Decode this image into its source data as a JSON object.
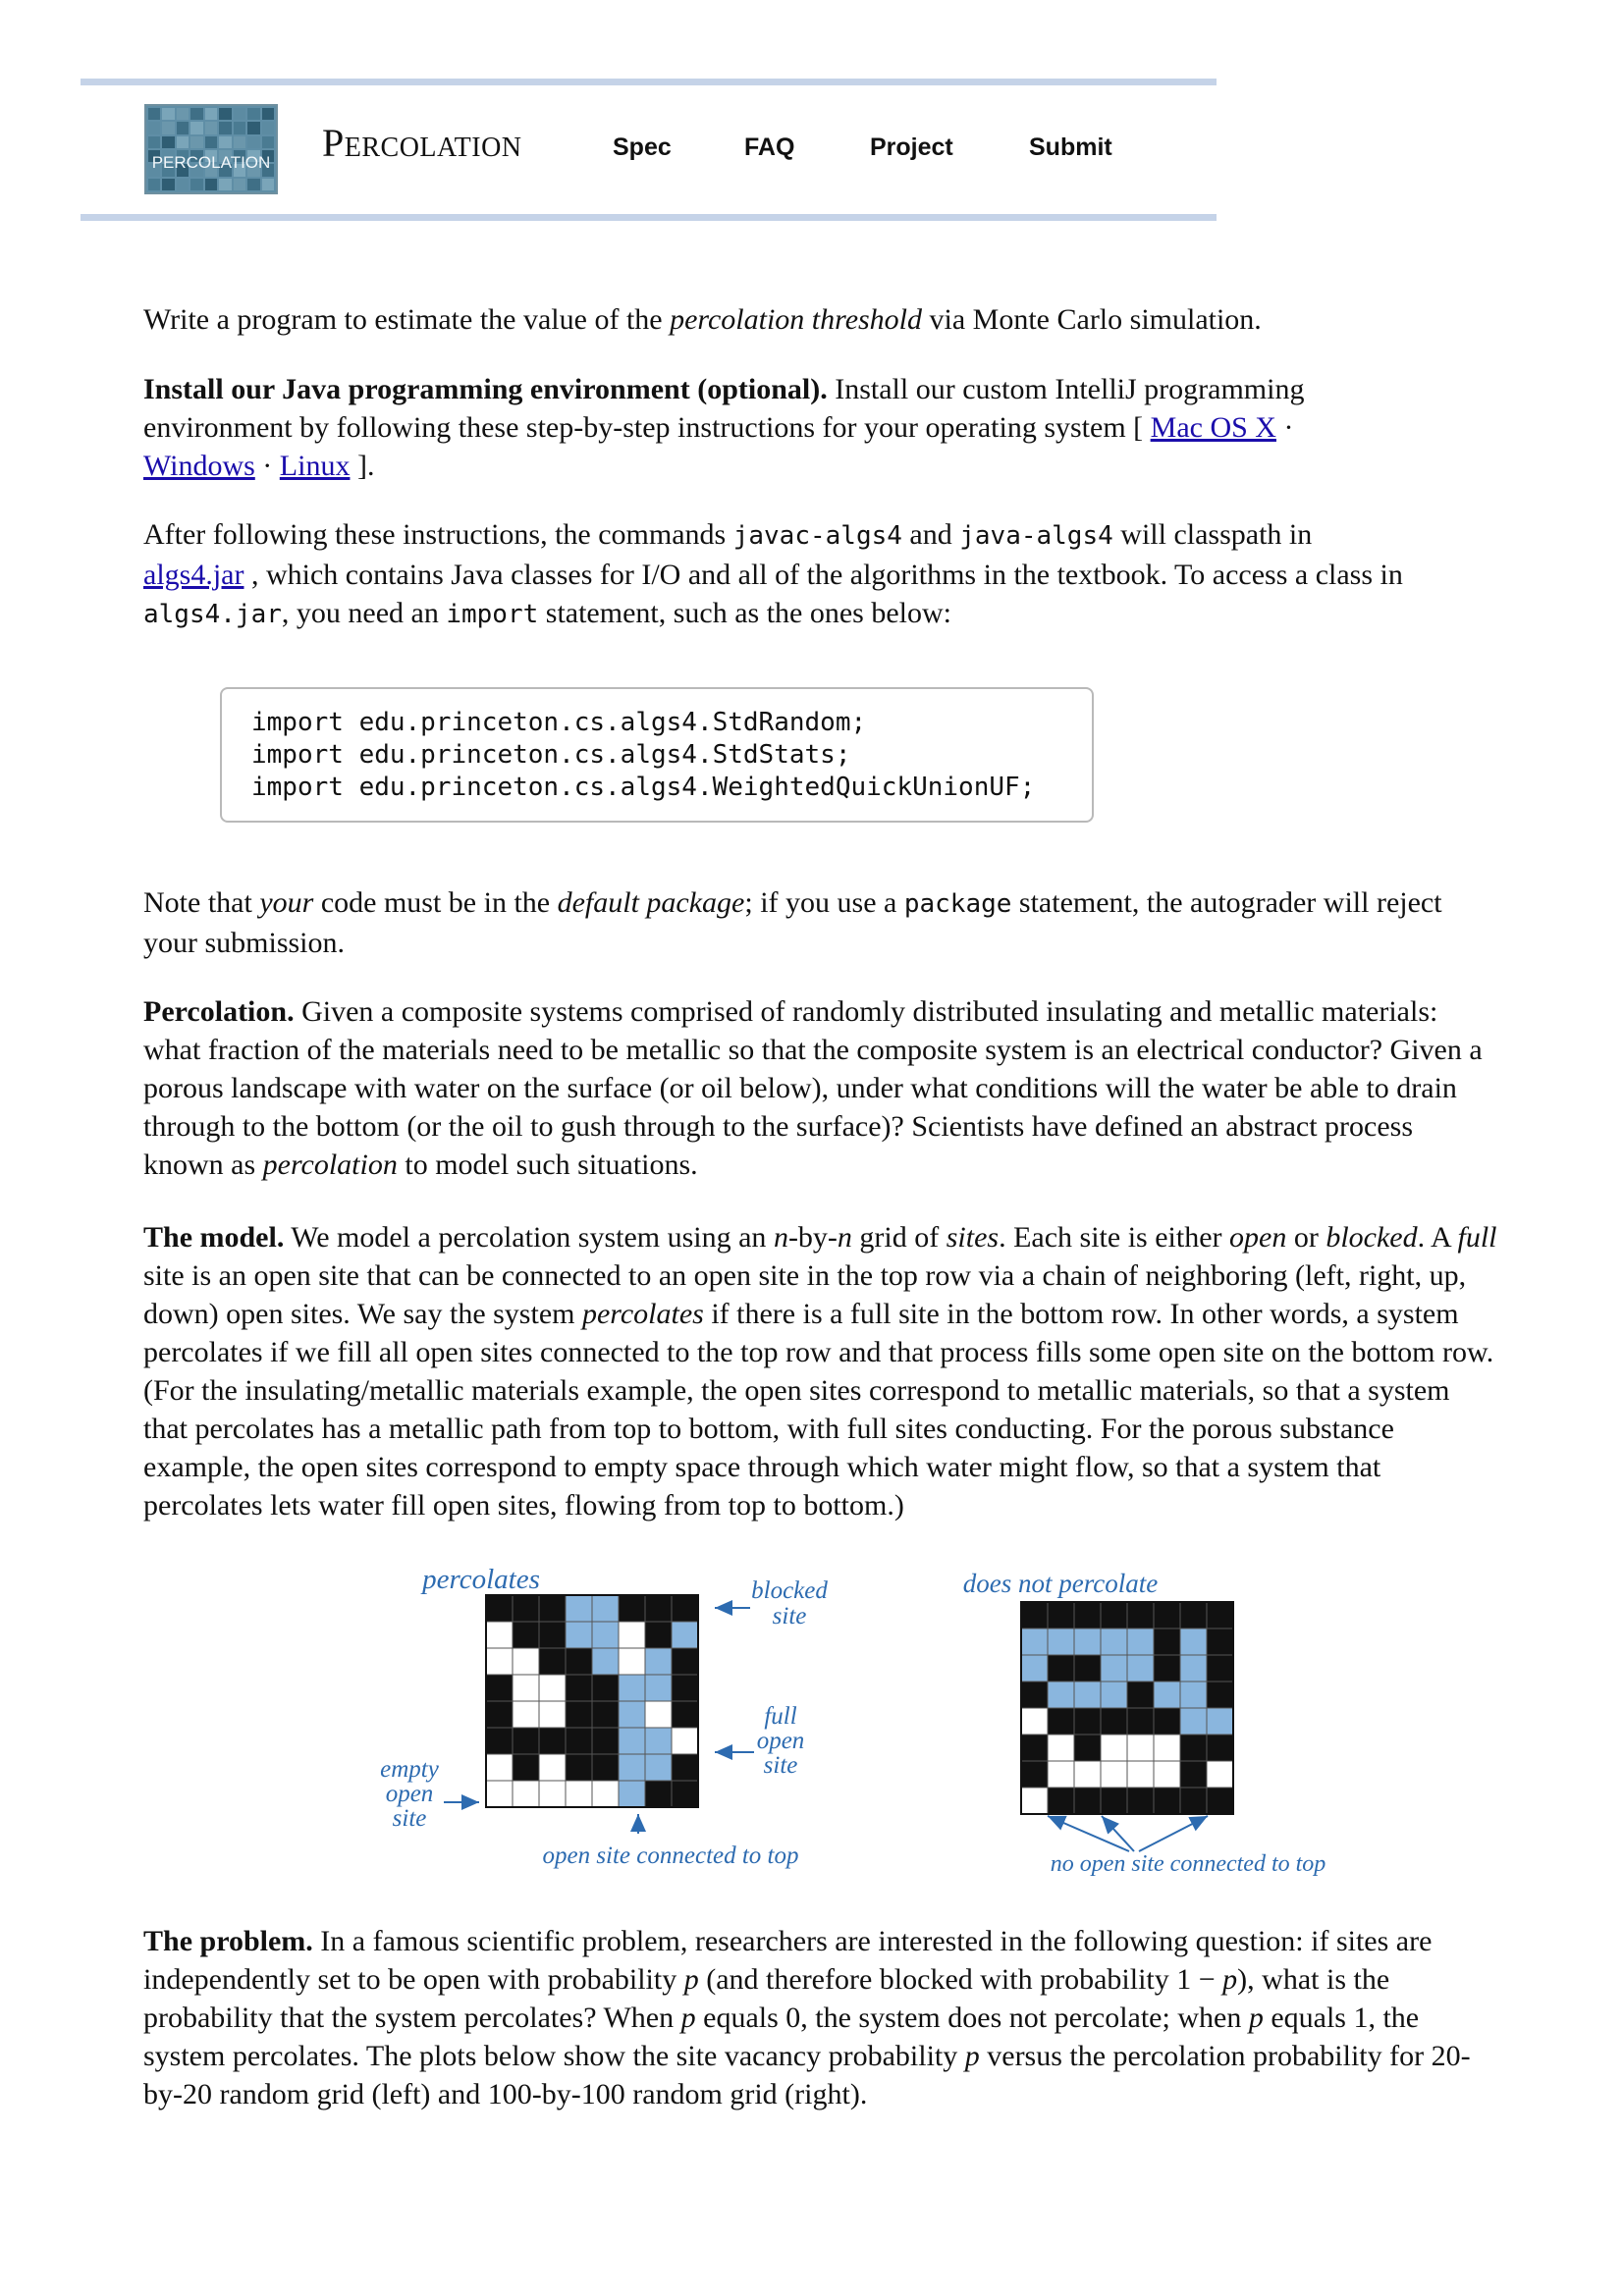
{
  "header": {
    "logo_text": "PERCOLATION",
    "title": "Percolation",
    "nav": [
      "Spec",
      "FAQ",
      "Project",
      "Submit"
    ]
  },
  "intro": {
    "before": "Write a program to estimate the value of the ",
    "em": "percolation threshold",
    "after": " via Monte Carlo simulation."
  },
  "install": {
    "heading": "Install our Java programming environment (optional).",
    "text1": " Install our custom IntelliJ programming",
    "text2": "environment by following these step-by-step instructions for your operating system [ ",
    "link_mac": "Mac OS X",
    "sep1": " ·",
    "link_windows": "Windows",
    "sep2": " · ",
    "link_linux": "Linux",
    "close": " ]."
  },
  "after_install": {
    "t1": "After following these instructions, the commands ",
    "cmd1": "javac-algs4",
    "t2": " and ",
    "cmd2": "java-algs4",
    "t3": " will classpath in",
    "link_jar": "algs4.jar",
    "t4": " , which contains Java classes for I/O and all of the algorithms in the textbook. To access a class in",
    "code_jar": "algs4.jar",
    "t5": ", you need an ",
    "code_import": "import",
    "t6": " statement, such as the ones below:"
  },
  "code": [
    "import edu.princeton.cs.algs4.StdRandom;",
    "import edu.princeton.cs.algs4.StdStats;",
    "import edu.princeton.cs.algs4.WeightedQuickUnionUF;"
  ],
  "note": {
    "t1": "Note that ",
    "em1": "your",
    "t2": " code must be in the ",
    "em2": "default package",
    "t3": "; if you use a ",
    "code": "package",
    "t4": " statement, the autograder will reject",
    "t5": "your submission."
  },
  "percolation": {
    "heading": "Percolation.",
    "text": " Given a composite systems comprised of randomly distributed insulating and metallic materials: what fraction of the materials need to be metallic so that the composite system is an electrical conductor? Given a porous landscape with water on the surface (or oil below), under what conditions will the water be able to drain through to the bottom (or the oil to gush through to the surface)? Scientists have defined an abstract process known as ",
    "em": "percolation",
    "end": " to model such situations."
  },
  "model": {
    "heading": "The model.",
    "t1": " We model a percolation system using an ",
    "n1": "n",
    "t2": "-by-",
    "n2": "n",
    "t3": " grid of ",
    "sites": "sites",
    "t4": ". Each site is either ",
    "open": "open",
    "t5": " or ",
    "blocked": "blocked",
    "t6": ". A ",
    "full": "full",
    "t7": " site is an open site that can be connected to an open site in the top row via a chain of neighboring (left, right, up, down) open sites. We say the system ",
    "percolates": "percolates",
    "t8": " if there is a full site in the bottom row. In other words, a system percolates if we fill all open sites connected to the top row and that process fills some open site on the bottom row. (For the insulating/metallic materials example, the open sites correspond to metallic materials, so that a system that percolates has a metallic path from top to bottom, with full sites conducting. For the porous substance example, the open sites correspond to empty space through which water might flow, so that a system that percolates lets water fill open sites, flowing from top to bottom.)"
  },
  "figure": {
    "left_title": "percolates",
    "blocked_label": [
      "blocked",
      "site"
    ],
    "full_label": [
      "full",
      "open",
      "site"
    ],
    "empty_label": [
      "empty",
      "open",
      "site"
    ],
    "left_caption": "open site connected to top",
    "right_title": "does not percolate",
    "right_caption": "no open site connected to top",
    "colors": {
      "blocked": "#111111",
      "full": "#8ab6de",
      "empty": "#ffffff",
      "label": "#2d6bb0"
    },
    "left_grid": [
      "BBBFFBBB",
      "EBBFFEBF",
      "EEBBFEFB",
      "BEEBBFFB",
      "BEEBBFEB",
      "BBBBBFFE",
      "EBEBBFFB",
      "EEEEEFBB"
    ],
    "right_grid": [
      "BBBBBBBB",
      "FFFFFBFB",
      "FBBFFBFB",
      "BFFFBFFB",
      "EBBBBBFF",
      "BEBEEEBB",
      "BEEEEEBE",
      "EBBBBBBB"
    ]
  },
  "problem": {
    "heading": "The problem.",
    "t1": " In a famous scientific problem, researchers are interested in the following question: if sites are independently set to be open with probability ",
    "p1": "p",
    "t2": " (and therefore blocked with probability 1 − ",
    "p2": "p",
    "t3": "), what is the probability that the system percolates? When ",
    "p3": "p",
    "t4": " equals 0, the system does not percolate; when ",
    "p4": "p",
    "t5": " equals 1, the system percolates. The plots below show the site vacancy probability ",
    "p5": "p",
    "t6": " versus the percolation probability for 20-by-20 random grid (left) and 100-by-100 random grid (right)."
  }
}
